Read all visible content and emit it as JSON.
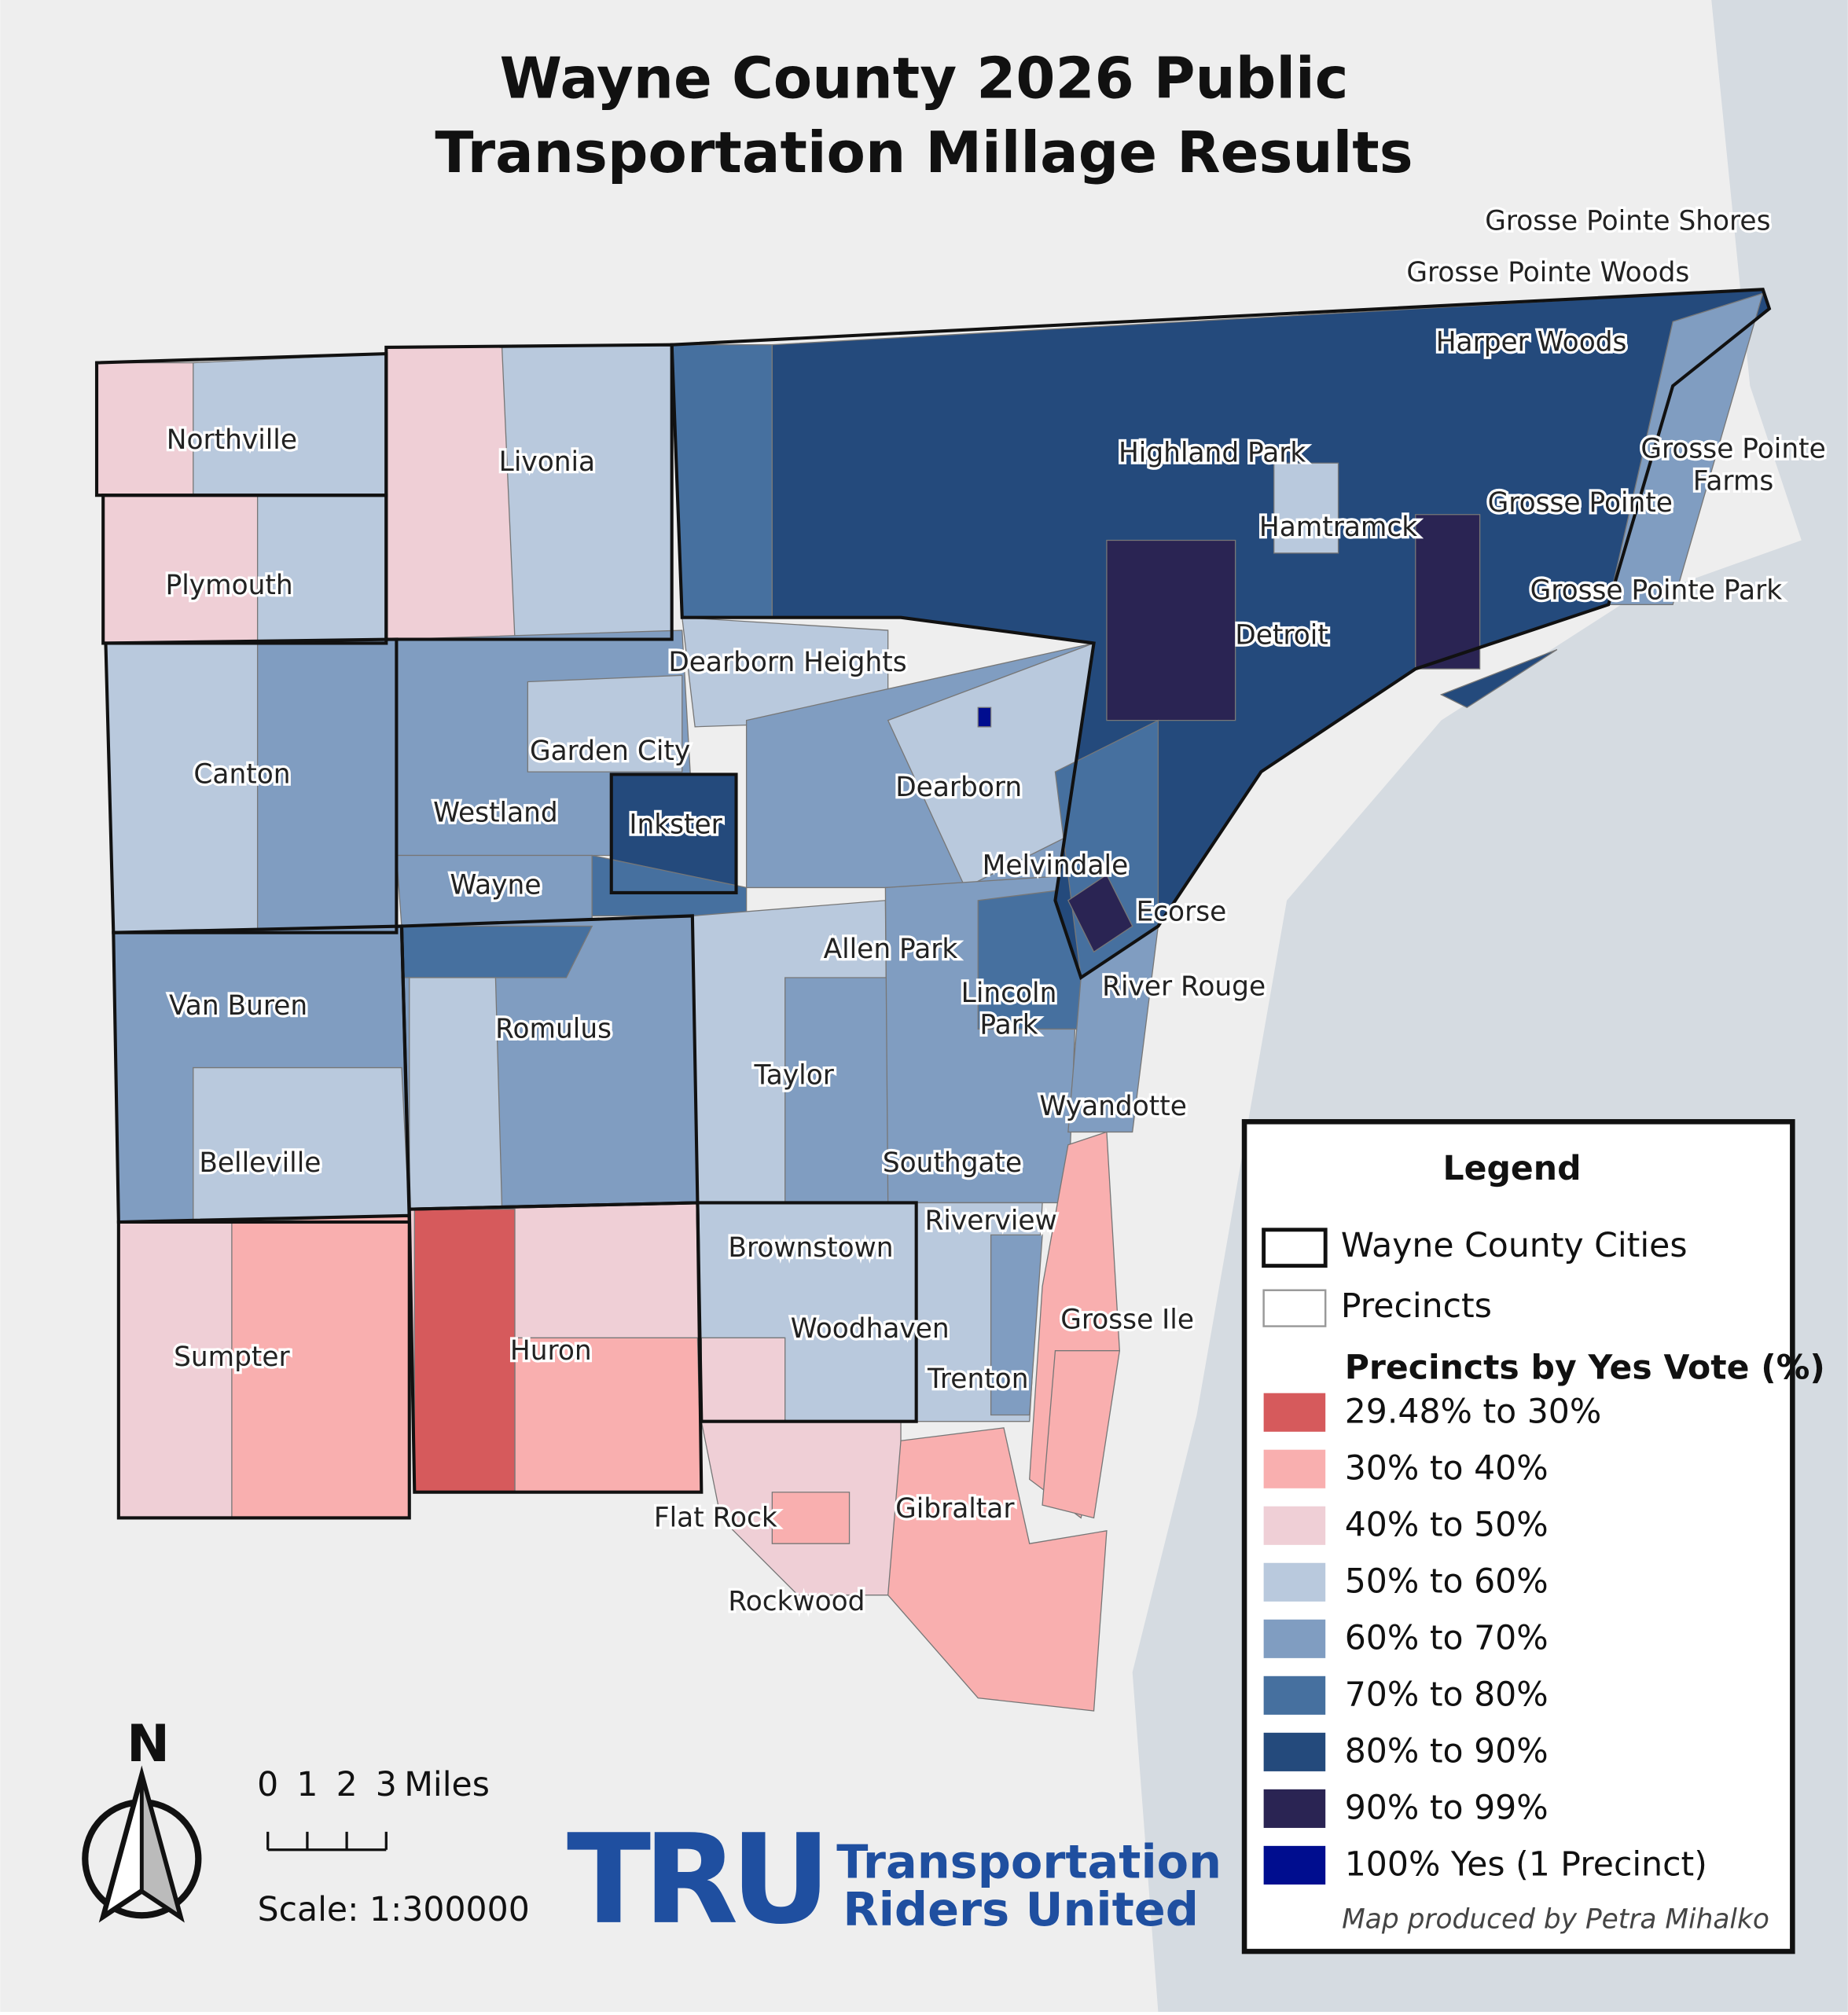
{
  "title": [
    "Wayne County 2026 Public",
    "Transportation Millage Results"
  ],
  "cities": [
    [
      "Northville"
    ],
    [
      "Livonia"
    ],
    [
      "Plymouth"
    ],
    [
      "Canton"
    ],
    [
      "Westland"
    ],
    [
      "Garden City"
    ],
    [
      "Inkster"
    ],
    [
      "Wayne"
    ],
    [
      "Dearborn Heights"
    ],
    [
      "Dearborn"
    ],
    [
      "Melvindale"
    ],
    [
      "Ecorse"
    ],
    [
      "Allen Park"
    ],
    [
      "Lincoln",
      "Park"
    ],
    [
      "River Rouge"
    ],
    [
      "Van Buren"
    ],
    [
      "Romulus"
    ],
    [
      "Taylor"
    ],
    [
      "Wyandotte"
    ],
    [
      "Belleville"
    ],
    [
      "Southgate"
    ],
    [
      "Riverview"
    ],
    [
      "Brownstown"
    ],
    [
      "Grosse Ile"
    ],
    [
      "Sumpter"
    ],
    [
      "Huron"
    ],
    [
      "Woodhaven"
    ],
    [
      "Trenton"
    ],
    [
      "Flat Rock"
    ],
    [
      "Gibraltar"
    ],
    [
      "Rockwood"
    ],
    [
      "Detroit"
    ],
    [
      "Highland Park"
    ],
    [
      "Hamtramck"
    ],
    [
      "Harper Woods"
    ],
    [
      "Grosse Pointe"
    ],
    [
      "Grosse Pointe Park"
    ],
    [
      "Grosse Pointe",
      "Farms"
    ],
    [
      "Grosse Pointe Woods"
    ],
    [
      "Grosse Pointe Shores"
    ]
  ],
  "legend": {
    "title": "Legend",
    "cities_item": "Wayne County Cities",
    "precincts_item": "Precincts",
    "classes_title": "Precincts by Yes Vote (%)",
    "classes": [
      {
        "label": "29.48% to 30%",
        "color": "#d65a5c"
      },
      {
        "label": "30% to 40%",
        "color": "#f9afaf"
      },
      {
        "label": "40% to 50%",
        "color": "#efcfd6"
      },
      {
        "label": "50% to 60%",
        "color": "#b9c9dd"
      },
      {
        "label": "60% to 70%",
        "color": "#809dc1"
      },
      {
        "label": "70% to 80%",
        "color": "#46709f"
      },
      {
        "label": "80% to 90%",
        "color": "#244a7c"
      },
      {
        "label": "90% to 99%",
        "color": "#2a2453"
      },
      {
        "label": "100% Yes (1 Precinct)",
        "color": "#000d8f"
      }
    ],
    "credit": "Map produced by Petra Mihalko"
  },
  "north": "N",
  "scale": {
    "ticks": [
      0,
      1,
      2,
      3
    ],
    "unit": "Miles",
    "text": "Scale: 1:300000"
  },
  "logo": {
    "mark": "TRU",
    "line1": "Transportation",
    "line2": "Riders United"
  }
}
